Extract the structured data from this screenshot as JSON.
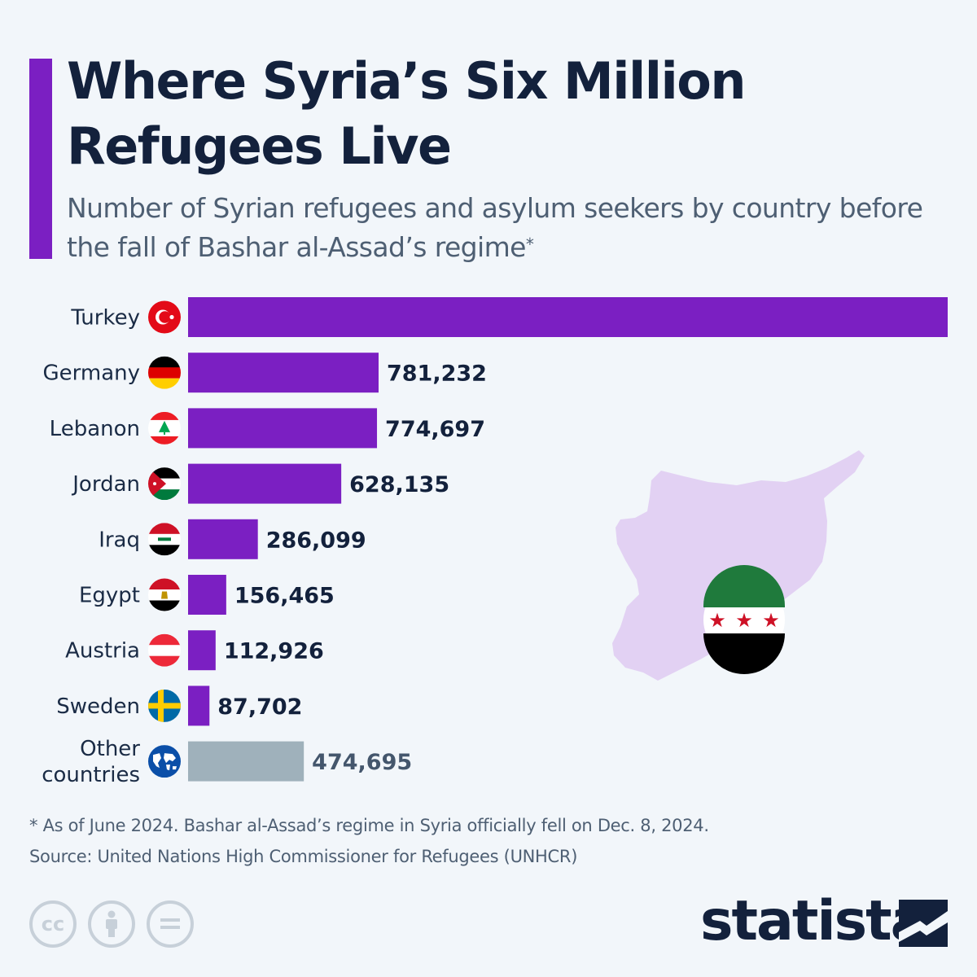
{
  "header": {
    "title": "Where Syria’s Six Million Refugees Live",
    "subtitle": "Number of Syrian refugees and asylum seekers by country before the fall of Bashar al-Assad’s regime",
    "subtitle_mark": "*"
  },
  "chart_data": {
    "type": "bar",
    "orientation": "horizontal",
    "categories": [
      "Turkey",
      "Germany",
      "Lebanon",
      "Jordan",
      "Iraq",
      "Egypt",
      "Austria",
      "Sweden",
      "Other countries"
    ],
    "values": [
      3115000,
      781232,
      774697,
      628135,
      286099,
      156465,
      112926,
      87702,
      474695
    ],
    "value_labels": [
      "",
      "781,232",
      "774,697",
      "628,135",
      "286,099",
      "156,465",
      "112,926",
      "87,702",
      "474,695"
    ],
    "flag_icons": [
      "turkey-flag-icon",
      "germany-flag-icon",
      "lebanon-flag-icon",
      "jordan-flag-icon",
      "iraq-flag-icon",
      "egypt-flag-icon",
      "austria-flag-icon",
      "sweden-flag-icon",
      "globe-icon"
    ],
    "colors": [
      "#7b1fc2",
      "#7b1fc2",
      "#7b1fc2",
      "#7b1fc2",
      "#7b1fc2",
      "#7b1fc2",
      "#7b1fc2",
      "#7b1fc2",
      "#9fb1bb"
    ],
    "xlim": [
      0,
      3115000
    ],
    "grid": false,
    "legend": "none"
  },
  "colors": {
    "accent": "#7b1fc2",
    "other": "#9fb1bb",
    "title": "#13213c",
    "map": "#e2d1f3"
  },
  "footer": {
    "note": "* As of June 2024. Bashar al-Assad’s regime in Syria officially fell on Dec. 8, 2024.",
    "source": "Source: United Nations High Commissioner for Refugees (UNHCR)",
    "cc_icons": [
      "cc-icon",
      "attribution-icon",
      "no-derivatives-icon"
    ],
    "logo": "statista"
  }
}
